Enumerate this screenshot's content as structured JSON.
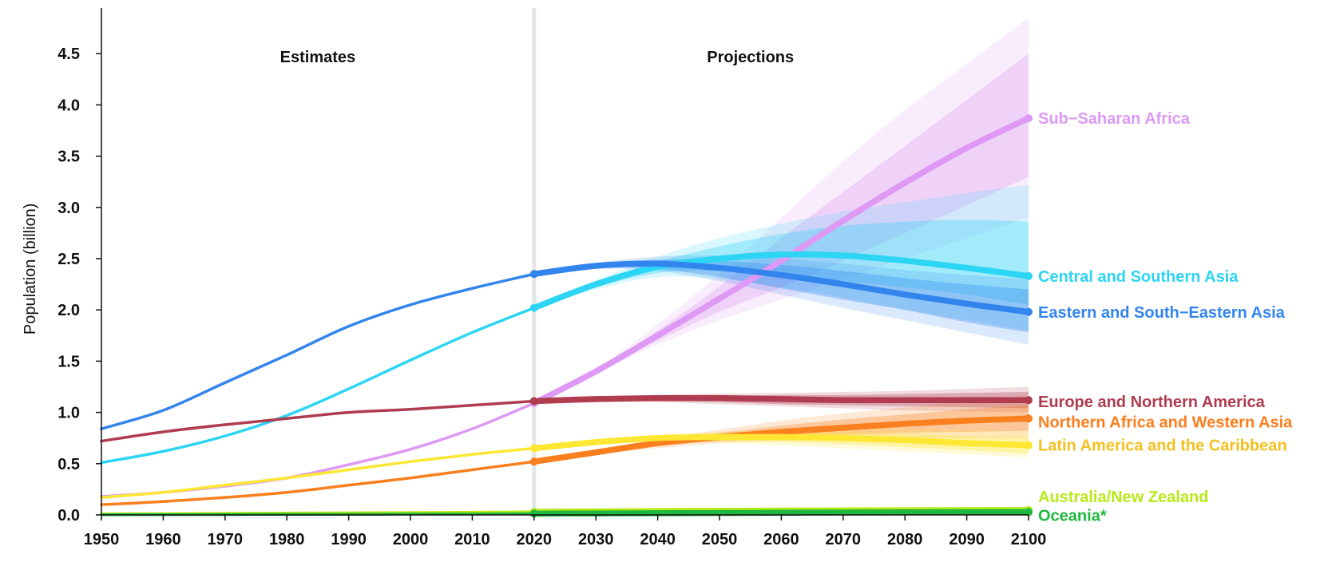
{
  "chart_data": {
    "type": "line",
    "ylabel": "Population (billion)",
    "xlabel": "",
    "xlim": [
      1950,
      2100
    ],
    "ylim": [
      0,
      4.9
    ],
    "x_ticks": [
      "1950",
      "1960",
      "1970",
      "1980",
      "1990",
      "2000",
      "2010",
      "2020",
      "2030",
      "2040",
      "2050",
      "2060",
      "2070",
      "2080",
      "2090",
      "2100"
    ],
    "y_ticks": [
      "0.0",
      "0.5",
      "1.0",
      "1.5",
      "2.0",
      "2.5",
      "3.0",
      "3.5",
      "4.0",
      "4.5"
    ],
    "divider_year": 2020,
    "period_labels": {
      "estimates": "Estimates",
      "projections": "Projections"
    },
    "series": [
      {
        "name": "Sub−Saharan Africa",
        "color": "#dd99f3",
        "estimates": {
          "x": [
            1950,
            1960,
            1970,
            1980,
            1990,
            2000,
            2010,
            2020
          ],
          "y": [
            0.18,
            0.22,
            0.28,
            0.36,
            0.49,
            0.64,
            0.84,
            1.09
          ]
        },
        "projection": {
          "x": [
            2020,
            2030,
            2040,
            2050,
            2060,
            2070,
            2080,
            2090,
            2100
          ],
          "y": [
            1.09,
            1.4,
            1.75,
            2.11,
            2.48,
            2.87,
            3.24,
            3.58,
            3.87
          ]
        },
        "band95": {
          "lower": [
            1.09,
            1.38,
            1.66,
            1.9,
            2.1,
            2.3,
            2.5,
            2.7,
            2.9
          ],
          "upper": [
            1.09,
            1.42,
            1.86,
            2.35,
            2.9,
            3.45,
            3.95,
            4.4,
            4.85
          ]
        },
        "band80": {
          "lower": [
            1.09,
            1.39,
            1.7,
            1.98,
            2.22,
            2.48,
            2.75,
            3.02,
            3.3
          ],
          "upper": [
            1.09,
            1.41,
            1.8,
            2.23,
            2.7,
            3.15,
            3.6,
            4.05,
            4.5
          ]
        }
      },
      {
        "name": "Central and Southern Asia",
        "color": "#2dd5f5",
        "estimates": {
          "x": [
            1950,
            1960,
            1970,
            1980,
            1990,
            2000,
            2010,
            2020
          ],
          "y": [
            0.51,
            0.62,
            0.77,
            0.97,
            1.23,
            1.51,
            1.78,
            2.02
          ]
        },
        "projection": {
          "x": [
            2020,
            2030,
            2040,
            2050,
            2060,
            2070,
            2080,
            2090,
            2100
          ],
          "y": [
            2.02,
            2.25,
            2.42,
            2.5,
            2.54,
            2.53,
            2.48,
            2.41,
            2.33
          ]
        },
        "band95": {
          "lower": [
            2.02,
            2.2,
            2.32,
            2.3,
            2.22,
            2.12,
            2.0,
            1.9,
            1.8
          ],
          "upper": [
            2.02,
            2.29,
            2.52,
            2.7,
            2.84,
            2.96,
            3.05,
            3.14,
            3.22
          ]
        },
        "band80": {
          "lower": [
            2.02,
            2.22,
            2.36,
            2.38,
            2.33,
            2.28,
            2.22,
            2.15,
            2.05
          ],
          "upper": [
            2.02,
            2.27,
            2.47,
            2.62,
            2.74,
            2.82,
            2.86,
            2.88,
            2.86
          ]
        }
      },
      {
        "name": "Eastern and South−Eastern Asia",
        "color": "#3385ee",
        "estimates": {
          "x": [
            1950,
            1960,
            1970,
            1980,
            1990,
            2000,
            2010,
            2020
          ],
          "y": [
            0.84,
            1.02,
            1.29,
            1.56,
            1.84,
            2.05,
            2.21,
            2.35
          ]
        },
        "projection": {
          "x": [
            2020,
            2030,
            2040,
            2050,
            2060,
            2070,
            2080,
            2090,
            2100
          ],
          "y": [
            2.35,
            2.43,
            2.45,
            2.41,
            2.34,
            2.25,
            2.15,
            2.06,
            1.98
          ]
        },
        "band95": {
          "lower": [
            2.35,
            2.4,
            2.38,
            2.28,
            2.15,
            2.02,
            1.9,
            1.78,
            1.66
          ],
          "upper": [
            2.35,
            2.46,
            2.52,
            2.53,
            2.5,
            2.45,
            2.39,
            2.34,
            2.3
          ]
        },
        "band80": {
          "lower": [
            2.35,
            2.41,
            2.4,
            2.32,
            2.21,
            2.1,
            2.0,
            1.88,
            1.78
          ],
          "upper": [
            2.35,
            2.45,
            2.49,
            2.48,
            2.44,
            2.38,
            2.31,
            2.25,
            2.2
          ]
        }
      },
      {
        "name": "Europe and Northern America",
        "color": "#b03c50",
        "estimates": {
          "x": [
            1950,
            1960,
            1970,
            1980,
            1990,
            2000,
            2010,
            2020
          ],
          "y": [
            0.72,
            0.81,
            0.88,
            0.94,
            1.0,
            1.03,
            1.07,
            1.11
          ]
        },
        "projection": {
          "x": [
            2020,
            2030,
            2040,
            2050,
            2060,
            2070,
            2080,
            2090,
            2100
          ],
          "y": [
            1.11,
            1.13,
            1.14,
            1.14,
            1.13,
            1.12,
            1.12,
            1.12,
            1.12
          ]
        },
        "band95": {
          "lower": [
            1.11,
            1.11,
            1.1,
            1.08,
            1.06,
            1.04,
            1.02,
            1.01,
            1.0
          ],
          "upper": [
            1.11,
            1.14,
            1.16,
            1.18,
            1.19,
            1.2,
            1.21,
            1.23,
            1.25
          ]
        },
        "band80": {
          "lower": [
            1.11,
            1.12,
            1.11,
            1.1,
            1.08,
            1.07,
            1.06,
            1.05,
            1.04
          ],
          "upper": [
            1.11,
            1.13,
            1.15,
            1.16,
            1.17,
            1.17,
            1.18,
            1.19,
            1.2
          ]
        }
      },
      {
        "name": "Northern Africa and Western Asia",
        "color": "#fa7f1e",
        "estimates": {
          "x": [
            1950,
            1960,
            1970,
            1980,
            1990,
            2000,
            2010,
            2020
          ],
          "y": [
            0.1,
            0.13,
            0.17,
            0.22,
            0.29,
            0.36,
            0.44,
            0.52
          ]
        },
        "projection": {
          "x": [
            2020,
            2030,
            2040,
            2050,
            2060,
            2070,
            2080,
            2090,
            2100
          ],
          "y": [
            0.52,
            0.61,
            0.7,
            0.76,
            0.81,
            0.85,
            0.89,
            0.92,
            0.94
          ]
        },
        "band95": {
          "lower": [
            0.52,
            0.59,
            0.65,
            0.7,
            0.72,
            0.73,
            0.74,
            0.75,
            0.75
          ],
          "upper": [
            0.52,
            0.63,
            0.74,
            0.83,
            0.92,
            0.99,
            1.05,
            1.11,
            1.16
          ]
        },
        "band80": {
          "lower": [
            0.52,
            0.6,
            0.67,
            0.72,
            0.75,
            0.78,
            0.8,
            0.81,
            0.82
          ],
          "upper": [
            0.52,
            0.62,
            0.72,
            0.8,
            0.87,
            0.93,
            0.98,
            1.03,
            1.07
          ]
        }
      },
      {
        "name": "Latin America and the Caribbean",
        "color": "#fde732",
        "label_color": "#f4c020",
        "estimates": {
          "x": [
            1950,
            1960,
            1970,
            1980,
            1990,
            2000,
            2010,
            2020
          ],
          "y": [
            0.17,
            0.22,
            0.29,
            0.36,
            0.44,
            0.52,
            0.59,
            0.65
          ]
        },
        "projection": {
          "x": [
            2020,
            2030,
            2040,
            2050,
            2060,
            2070,
            2080,
            2090,
            2100
          ],
          "y": [
            0.65,
            0.71,
            0.75,
            0.76,
            0.76,
            0.75,
            0.73,
            0.7,
            0.68
          ]
        },
        "band95": {
          "lower": [
            0.65,
            0.69,
            0.71,
            0.7,
            0.68,
            0.65,
            0.62,
            0.59,
            0.56
          ],
          "upper": [
            0.65,
            0.73,
            0.78,
            0.81,
            0.83,
            0.84,
            0.84,
            0.83,
            0.82
          ]
        },
        "band80": {
          "lower": [
            0.65,
            0.7,
            0.73,
            0.72,
            0.71,
            0.69,
            0.66,
            0.63,
            0.6
          ],
          "upper": [
            0.65,
            0.72,
            0.77,
            0.79,
            0.8,
            0.8,
            0.79,
            0.77,
            0.76
          ]
        }
      },
      {
        "name": "Australia/New Zealand",
        "color": "#b9ea18",
        "estimates": {
          "x": [
            1950,
            1960,
            1970,
            1980,
            1990,
            2000,
            2010,
            2020
          ],
          "y": [
            0.01,
            0.012,
            0.015,
            0.018,
            0.02,
            0.023,
            0.026,
            0.03
          ]
        },
        "projection": {
          "x": [
            2020,
            2030,
            2040,
            2050,
            2060,
            2070,
            2080,
            2090,
            2100
          ],
          "y": [
            0.03,
            0.034,
            0.037,
            0.04,
            0.042,
            0.044,
            0.046,
            0.047,
            0.048
          ]
        },
        "band95": {
          "lower": [
            0.03,
            0.033,
            0.034,
            0.035,
            0.035,
            0.035,
            0.035,
            0.034,
            0.033
          ],
          "upper": [
            0.03,
            0.035,
            0.04,
            0.045,
            0.049,
            0.053,
            0.057,
            0.061,
            0.065
          ]
        },
        "band80": {
          "lower": [
            0.03,
            0.033,
            0.035,
            0.037,
            0.038,
            0.039,
            0.04,
            0.04,
            0.04
          ],
          "upper": [
            0.03,
            0.035,
            0.039,
            0.043,
            0.046,
            0.049,
            0.052,
            0.054,
            0.056
          ]
        }
      },
      {
        "name": "Oceania*",
        "color": "#1fb83e",
        "estimates": {
          "x": [
            1950,
            1960,
            1970,
            1980,
            1990,
            2000,
            2010,
            2020
          ],
          "y": [
            0.002,
            0.003,
            0.004,
            0.005,
            0.006,
            0.008,
            0.009,
            0.012
          ]
        },
        "projection": {
          "x": [
            2020,
            2030,
            2040,
            2050,
            2060,
            2070,
            2080,
            2090,
            2100
          ],
          "y": [
            0.012,
            0.014,
            0.017,
            0.019,
            0.021,
            0.023,
            0.025,
            0.027,
            0.028
          ]
        },
        "band95": {
          "lower": [
            0.012,
            0.013,
            0.015,
            0.016,
            0.017,
            0.018,
            0.019,
            0.019,
            0.02
          ],
          "upper": [
            0.012,
            0.015,
            0.019,
            0.022,
            0.026,
            0.029,
            0.032,
            0.035,
            0.038
          ]
        },
        "band80": {
          "lower": [
            0.012,
            0.014,
            0.016,
            0.017,
            0.019,
            0.02,
            0.021,
            0.022,
            0.023
          ],
          "upper": [
            0.012,
            0.015,
            0.018,
            0.021,
            0.024,
            0.026,
            0.029,
            0.031,
            0.033
          ]
        }
      }
    ]
  }
}
